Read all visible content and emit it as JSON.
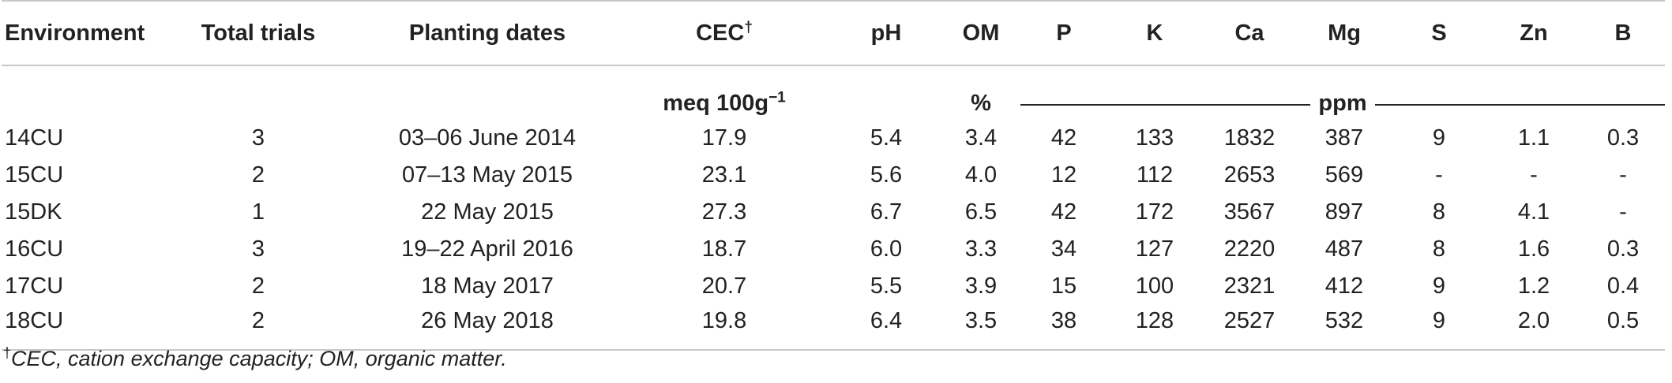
{
  "table": {
    "headers": {
      "environment": "Environment",
      "total_trials": "Total trials",
      "planting_dates": "Planting dates",
      "cec": "CEC",
      "cec_mark": "†",
      "ph": "pH",
      "om": "OM",
      "p": "P",
      "k": "K",
      "ca": "Ca",
      "mg": "Mg",
      "s": "S",
      "zn": "Zn",
      "b": "B"
    },
    "units": {
      "cec": "meq 100g",
      "cec_exp": "−1",
      "om": "%",
      "nutrients": "ppm"
    },
    "rows": [
      {
        "environment": "14CU",
        "total_trials": "3",
        "planting_dates": "03–06 June 2014",
        "cec": "17.9",
        "ph": "5.4",
        "om": "3.4",
        "p": "42",
        "k": "133",
        "ca": "1832",
        "mg": "387",
        "s": "9",
        "zn": "1.1",
        "b": "0.3"
      },
      {
        "environment": "15CU",
        "total_trials": "2",
        "planting_dates": "07–13 May 2015",
        "cec": "23.1",
        "ph": "5.6",
        "om": "4.0",
        "p": "12",
        "k": "112",
        "ca": "2653",
        "mg": "569",
        "s": "-",
        "zn": "-",
        "b": "-"
      },
      {
        "environment": "15DK",
        "total_trials": "1",
        "planting_dates": "22 May 2015",
        "cec": "27.3",
        "ph": "6.7",
        "om": "6.5",
        "p": "42",
        "k": "172",
        "ca": "3567",
        "mg": "897",
        "s": "8",
        "zn": "4.1",
        "b": "-"
      },
      {
        "environment": "16CU",
        "total_trials": "3",
        "planting_dates": "19–22 April 2016",
        "cec": "18.7",
        "ph": "6.0",
        "om": "3.3",
        "p": "34",
        "k": "127",
        "ca": "2220",
        "mg": "487",
        "s": "8",
        "zn": "1.6",
        "b": "0.3"
      },
      {
        "environment": "17CU",
        "total_trials": "2",
        "planting_dates": "18 May 2017",
        "cec": "20.7",
        "ph": "5.5",
        "om": "3.9",
        "p": "15",
        "k": "100",
        "ca": "2321",
        "mg": "412",
        "s": "9",
        "zn": "1.2",
        "b": "0.4"
      },
      {
        "environment": "18CU",
        "total_trials": "2",
        "planting_dates": "26 May 2018",
        "cec": "19.8",
        "ph": "6.4",
        "om": "3.5",
        "p": "38",
        "k": "128",
        "ca": "2527",
        "mg": "532",
        "s": "9",
        "zn": "2.0",
        "b": "0.5"
      }
    ]
  },
  "footnote": {
    "mark": "†",
    "text": "CEC, cation exchange capacity; OM, organic matter."
  }
}
